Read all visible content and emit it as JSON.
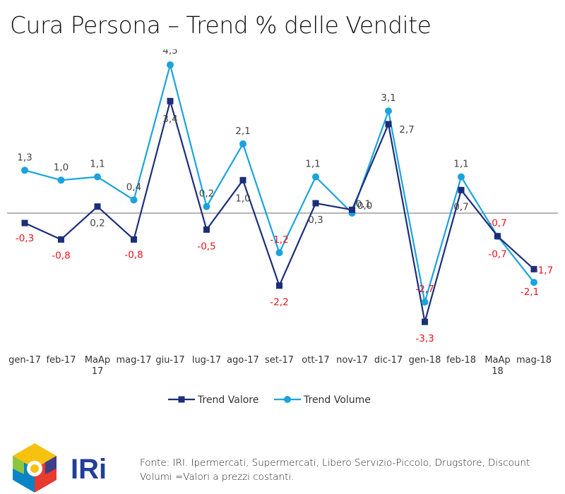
{
  "title": "Cura Persona – Trend % delle Vendite",
  "chart_data": {
    "type": "line",
    "categories": [
      "gen-17",
      "feb-17",
      "MaAp 17",
      "mag-17",
      "giu-17",
      "lug-17",
      "ago-17",
      "set-17",
      "ott-17",
      "nov-17",
      "dic-17",
      "gen-18",
      "feb-18",
      "MaAp 18",
      "mag-18"
    ],
    "series": [
      {
        "name": "Trend Valore",
        "color": "#1c2e7a",
        "marker": "square",
        "values": [
          -0.3,
          -0.8,
          0.2,
          -0.8,
          3.4,
          -0.5,
          1.0,
          -2.2,
          0.3,
          0.1,
          2.7,
          -3.3,
          0.7,
          -0.7,
          -1.7
        ],
        "labels": [
          "-0,3",
          "-0,8",
          "0,2",
          "-0,8",
          "3,4",
          "-0,5",
          "1,0",
          "-2,2",
          "0,3",
          "0,1",
          "2,7",
          "-3,3",
          "0,7",
          "-0,7",
          "-1,7"
        ]
      },
      {
        "name": "Trend Volume",
        "color": "#1aa3dd",
        "marker": "circle",
        "values": [
          1.3,
          1.0,
          1.1,
          0.4,
          4.5,
          0.2,
          2.1,
          -1.2,
          1.1,
          0.0,
          3.1,
          -2.7,
          1.1,
          -0.7,
          -2.1
        ],
        "labels": [
          "1,3",
          "1,0",
          "1,1",
          "0,4",
          "4,5",
          "0,2",
          "2,1",
          "-1,2",
          "1,1",
          "0,0",
          "3,1",
          "-2,7",
          "1,1",
          "-0,7",
          "-2,1"
        ]
      }
    ],
    "negative_label_color": "#e8131b",
    "positive_label_color": "#444444",
    "ylim": [
      -3.6,
      4.7
    ],
    "legend_position": "bottom-center",
    "grid": false
  },
  "logo": {
    "text": "IRi",
    "colors": [
      "#e63b2e",
      "#f6c20f",
      "#8cc63f",
      "#0a84c6",
      "#213f99"
    ]
  },
  "footer": {
    "line1": "Fonte: IRI. Ipermercati, Supermercati, Libero Servizio-Piccolo, Drugstore, Discount",
    "line2": "Volumi =Valori a prezzi costanti."
  }
}
